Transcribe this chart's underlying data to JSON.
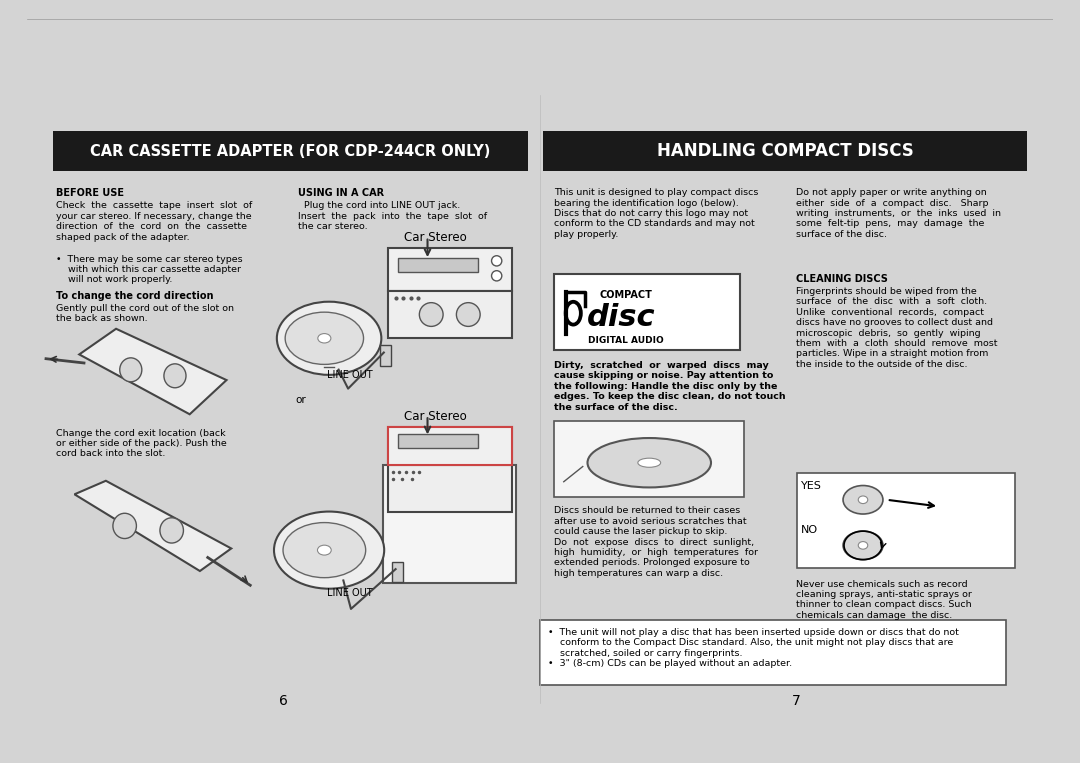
{
  "page_bg": "#ffffff",
  "border_color": "#cccccc",
  "header1_text": "CAR CASSETTE ADAPTER (FOR CDP-244CR ONLY)",
  "header2_text": "HANDLING COMPACT DISCS",
  "header_bg": "#1a1a1a",
  "header_fg": "#ffffff",
  "page_num_left": "6",
  "page_num_right": "7",
  "before_use_title": "BEFORE USE",
  "before_use_p1": "Check  the  cassette  tape  insert  slot  of\nyour car stereo. If necessary, change the\ndirection  of  the  cord  on  the  cassette\nshaped pack of the adapter.",
  "before_use_bullet": "•  There may be some car stereo types\n    with which this car cassette adapter\n    will not work properly.",
  "cord_title": "To change the cord direction",
  "cord_body": "Gently pull the cord out of the slot on\nthe back as shown.",
  "cord_change": "Change the cord exit location (back\nor either side of the pack). Push the\ncord back into the slot.",
  "using_car_title": "USING IN A CAR",
  "using_car_body": "  Plug the cord into LINE OUT jack.\nInsert  the  pack  into  the  tape  slot  of\nthe car stereo.",
  "car_stereo_label": "Car Stereo",
  "line_out_label": "LINE OUT",
  "or_label": "or",
  "handling_p1": "This unit is designed to play compact discs\nbearing the identification logo (below).\nDiscs that do not carry this logo may not\nconform to the CD standards and may not\nplay properly.",
  "handling_bold": "Dirty,  scratched  or  warped  discs  may\ncause skipping or noise. Pay attention to\nthe following: Handle the disc only by the\nedges. To keep the disc clean, do not touch\nthe surface of the disc.",
  "disc_return": "Discs should be returned to their cases\nafter use to avoid serious scratches that\ncould cause the laser pickup to skip.\nDo  not  expose  discs  to  direct  sunlight,\nhigh  humidity,  or  high  temperatures  for\nextended periods. Prolonged exposure to\nhigh temperatures can warp a disc.",
  "right_top": "Do not apply paper or write anything on\neither  side  of  a  compact  disc.   Sharp\nwriting  instruments,  or  the  inks  used  in\nsome  felt-tip  pens,  may  damage  the\nsurface of the disc.",
  "cleaning_title": "CLEANING DISCS",
  "cleaning_body": "Fingerprints should be wiped from the\nsurface  of  the  disc  with  a  soft  cloth.\nUnlike  conventional  records,  compact\ndiscs have no grooves to collect dust and\nmicroscopic  debris,  so  gently  wiping\nthem  with  a  cloth  should  remove  most\nparticles. Wipe in a straight motion from\nthe inside to the outside of the disc.",
  "yes_label": "YES",
  "no_label": "NO",
  "no_chem": "Never use chemicals such as record\ncleaning sprays, anti-static sprays or\nthinner to clean compact discs. Such\nchemicals can damage  the disc.",
  "box_bullet1": "•  The unit will not play a disc that has been inserted upside down or discs that do not\n    conform to the Compact Disc standard. Also, the unit might not play discs that are\n    scratched, soiled or carry fingerprints.",
  "box_bullet2": "•  3\" (8-cm) CDs can be played without an adapter."
}
